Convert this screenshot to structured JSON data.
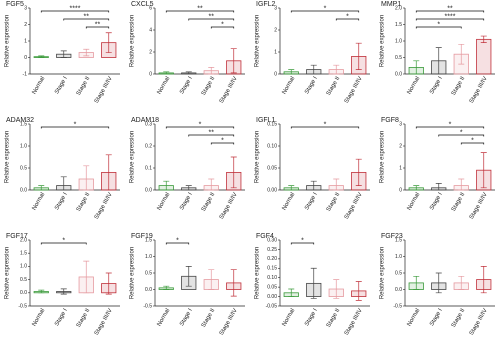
{
  "chart_data": [
    {
      "type": "bar",
      "title": "FGF5",
      "y_label": "Relative expression",
      "categories": [
        "Normal",
        "Stage I",
        "Stage II",
        "Stage III/IV"
      ],
      "colors": [
        "#3a9a3a",
        "#444444",
        "#e59aa0",
        "#c0303a"
      ],
      "values": [
        0.05,
        0.2,
        0.3,
        0.9
      ],
      "errors": [
        0.05,
        0.2,
        0.2,
        0.6
      ],
      "ylim": [
        -1,
        3
      ],
      "yticks": [
        -1,
        0,
        1,
        2,
        3
      ],
      "significance": [
        {
          "label": "**",
          "from": "Stage II",
          "to": "Stage III/IV"
        },
        {
          "label": "**",
          "from": "Stage I",
          "to": "Stage III/IV"
        },
        {
          "label": "****",
          "from": "Normal",
          "to": "Stage III/IV"
        }
      ]
    },
    {
      "type": "bar",
      "title": "CXCL5",
      "y_label": "Relative expression",
      "categories": [
        "Normal",
        "Stage I",
        "Stage II",
        "Stage III/IV"
      ],
      "colors": [
        "#3a9a3a",
        "#444444",
        "#e59aa0",
        "#c0303a"
      ],
      "values": [
        0.1,
        0.1,
        0.3,
        1.2
      ],
      "errors": [
        0.1,
        0.1,
        0.3,
        1.1
      ],
      "ylim": [
        0,
        6
      ],
      "yticks": [
        0,
        2,
        4,
        6
      ],
      "significance": [
        {
          "label": "*",
          "from": "Stage II",
          "to": "Stage III/IV"
        },
        {
          "label": "**",
          "from": "Stage I",
          "to": "Stage III/IV"
        },
        {
          "label": "**",
          "from": "Normal",
          "to": "Stage III/IV"
        }
      ]
    },
    {
      "type": "bar",
      "title": "IGFL2",
      "y_label": "Relative expression",
      "categories": [
        "Normal",
        "Stage I",
        "Stage II",
        "Stage III/IV"
      ],
      "colors": [
        "#3a9a3a",
        "#444444",
        "#e59aa0",
        "#c0303a"
      ],
      "values": [
        0.1,
        0.2,
        0.2,
        0.8
      ],
      "errors": [
        0.1,
        0.2,
        0.2,
        0.6
      ],
      "ylim": [
        0,
        3
      ],
      "yticks": [
        0,
        1,
        2,
        3
      ],
      "significance": [
        {
          "label": "*",
          "from": "Stage II",
          "to": "Stage III/IV"
        },
        {
          "label": "*",
          "from": "Normal",
          "to": "Stage III/IV"
        }
      ]
    },
    {
      "type": "bar",
      "title": "MMP1",
      "y_label": "Relative expression",
      "categories": [
        "Normal",
        "Stage I",
        "Stage II",
        "Stage III/IV"
      ],
      "colors": [
        "#3a9a3a",
        "#444444",
        "#e59aa0",
        "#c0303a"
      ],
      "values": [
        0.2,
        0.4,
        0.6,
        1.05
      ],
      "errors": [
        0.2,
        0.4,
        0.3,
        0.1
      ],
      "ylim": [
        0,
        2
      ],
      "yticks": [
        {
          "value": 0,
          "label": "0.0"
        },
        {
          "value": 0.5,
          "label": "0.5"
        },
        {
          "value": 1,
          "label": "1.0"
        },
        {
          "value": 1.5,
          "label": "1.5"
        },
        {
          "value": 2,
          "label": "2.0"
        }
      ],
      "significance": [
        {
          "label": "*",
          "from": "Normal",
          "to": "Stage II"
        },
        {
          "label": "****",
          "from": "Normal",
          "to": "Stage III/IV"
        },
        {
          "label": "**",
          "from": "Normal",
          "to": "Stage III/IV"
        }
      ]
    },
    {
      "type": "bar",
      "title": "ADAM32",
      "y_label": "Relative expression",
      "categories": [
        "Normal",
        "Stage I",
        "Stage II",
        "Stage III/IV"
      ],
      "colors": [
        "#3a9a3a",
        "#444444",
        "#e59aa0",
        "#c0303a"
      ],
      "values": [
        0.05,
        0.1,
        0.25,
        0.4
      ],
      "errors": [
        0.05,
        0.2,
        0.3,
        0.4
      ],
      "ylim": [
        0,
        1.5
      ],
      "yticks": [
        {
          "value": 0,
          "label": "0.0"
        },
        {
          "value": 0.5,
          "label": "0.5"
        },
        {
          "value": 1,
          "label": "1.0"
        },
        {
          "value": 1.5,
          "label": "1.5"
        }
      ],
      "significance": [
        {
          "label": "*",
          "from": "Normal",
          "to": "Stage III/IV"
        }
      ]
    },
    {
      "type": "bar",
      "title": "ADAM18",
      "y_label": "Relative expression",
      "categories": [
        "Normal",
        "Stage I",
        "Stage II",
        "Stage III/IV"
      ],
      "colors": [
        "#3a9a3a",
        "#444444",
        "#e59aa0",
        "#c0303a"
      ],
      "values": [
        0.02,
        0.01,
        0.02,
        0.08
      ],
      "errors": [
        0.02,
        0.01,
        0.03,
        0.07
      ],
      "ylim": [
        0,
        0.3
      ],
      "yticks": [
        {
          "value": 0,
          "label": "0.0"
        },
        0.1,
        0.2,
        0.3
      ],
      "significance": [
        {
          "label": "*",
          "from": "Stage II",
          "to": "Stage III/IV"
        },
        {
          "label": "**",
          "from": "Stage I",
          "to": "Stage III/IV"
        },
        {
          "label": "*",
          "from": "Normal",
          "to": "Stage III/IV"
        }
      ]
    },
    {
      "type": "bar",
      "title": "IGFL1",
      "y_label": "Relative expression",
      "categories": [
        "Normal",
        "Stage I",
        "Stage II",
        "Stage III/IV"
      ],
      "colors": [
        "#3a9a3a",
        "#444444",
        "#e59aa0",
        "#c0303a"
      ],
      "values": [
        0.005,
        0.01,
        0.01,
        0.04
      ],
      "errors": [
        0.005,
        0.01,
        0.015,
        0.03
      ],
      "ylim": [
        0,
        0.15
      ],
      "yticks": [
        {
          "value": 0,
          "label": "0.00"
        },
        0.05,
        {
          "value": 0.1,
          "label": "0.10"
        },
        0.15
      ],
      "significance": [
        {
          "label": "*",
          "from": "Normal",
          "to": "Stage III/IV"
        }
      ]
    },
    {
      "type": "bar",
      "title": "FGF8",
      "y_label": "Relative expression",
      "categories": [
        "Normal",
        "Stage I",
        "Stage II",
        "Stage III/IV"
      ],
      "colors": [
        "#3a9a3a",
        "#444444",
        "#e59aa0",
        "#c0303a"
      ],
      "values": [
        0.1,
        0.1,
        0.2,
        0.9
      ],
      "errors": [
        0.1,
        0.2,
        0.3,
        0.8
      ],
      "ylim": [
        0,
        3
      ],
      "yticks": [
        0,
        1,
        2,
        3
      ],
      "significance": [
        {
          "label": "*",
          "from": "Stage II",
          "to": "Stage III/IV"
        },
        {
          "label": "*",
          "from": "Stage I",
          "to": "Stage III/IV"
        },
        {
          "label": "*",
          "from": "Normal",
          "to": "Stage III/IV"
        }
      ]
    },
    {
      "type": "bar",
      "title": "FGF17",
      "y_label": "Relative expression",
      "categories": [
        "Normal",
        "Stage I",
        "Stage II",
        "Stage III/IV"
      ],
      "colors": [
        "#3a9a3a",
        "#444444",
        "#e59aa0",
        "#c0303a"
      ],
      "values": [
        0.05,
        0.05,
        0.6,
        0.35
      ],
      "errors": [
        0.05,
        0.1,
        0.6,
        0.4
      ],
      "ylim": [
        -0.5,
        2
      ],
      "yticks": [
        {
          "value": -0.5,
          "label": "-0.5"
        },
        {
          "value": 0,
          "label": "0.0"
        },
        {
          "value": 0.5,
          "label": "0.5"
        },
        {
          "value": 1,
          "label": "1.0"
        },
        {
          "value": 1.5,
          "label": "1.5"
        },
        {
          "value": 2,
          "label": "2.0"
        }
      ],
      "significance": [
        {
          "label": "*",
          "from": "Normal",
          "to": "Stage II"
        }
      ]
    },
    {
      "type": "bar",
      "title": "FGF19",
      "y_label": "Relative expression",
      "categories": [
        "Normal",
        "Stage I",
        "Stage II",
        "Stage III/IV"
      ],
      "colors": [
        "#3a9a3a",
        "#444444",
        "#e59aa0",
        "#c0303a"
      ],
      "values": [
        0.05,
        0.4,
        0.3,
        0.2
      ],
      "errors": [
        0.05,
        0.3,
        0.3,
        0.4
      ],
      "ylim": [
        -0.5,
        1.5
      ],
      "yticks": [
        {
          "value": -0.5,
          "label": "-0.5"
        },
        {
          "value": 0,
          "label": "0.0"
        },
        {
          "value": 0.5,
          "label": "0.5"
        },
        {
          "value": 1,
          "label": "1.0"
        },
        {
          "value": 1.5,
          "label": "1.5"
        }
      ],
      "significance": [
        {
          "label": "*",
          "from": "Normal",
          "to": "Stage I"
        }
      ]
    },
    {
      "type": "bar",
      "title": "FGF4",
      "y_label": "Relative expression",
      "categories": [
        "Normal",
        "Stage I",
        "Stage II",
        "Stage III/IV"
      ],
      "colors": [
        "#3a9a3a",
        "#444444",
        "#e59aa0",
        "#c0303a"
      ],
      "values": [
        0.02,
        0.07,
        0.04,
        0.03
      ],
      "errors": [
        0.02,
        0.08,
        0.05,
        0.05
      ],
      "ylim": [
        -0.05,
        0.3
      ],
      "yticks": [
        -0.05,
        {
          "value": 0,
          "label": "0.00"
        },
        0.05,
        {
          "value": 0.1,
          "label": "0.10"
        },
        0.15,
        {
          "value": 0.2,
          "label": "0.20"
        },
        0.25,
        {
          "value": 0.3,
          "label": "0.30"
        }
      ],
      "significance": [
        {
          "label": "*",
          "from": "Normal",
          "to": "Stage I"
        }
      ]
    },
    {
      "type": "bar",
      "title": "FGF23",
      "y_label": "Relative expression",
      "categories": [
        "Normal",
        "Stage I",
        "Stage II",
        "Stage III/IV"
      ],
      "colors": [
        "#3a9a3a",
        "#444444",
        "#e59aa0",
        "#c0303a"
      ],
      "values": [
        0.2,
        0.2,
        0.2,
        0.3
      ],
      "errors": [
        0.2,
        0.3,
        0.2,
        0.4
      ],
      "ylim": [
        -0.5,
        1.5
      ],
      "yticks": [
        {
          "value": -0.5,
          "label": "-0.5"
        },
        {
          "value": 0,
          "label": "0.0"
        },
        {
          "value": 0.5,
          "label": "0.5"
        },
        {
          "value": 1,
          "label": "1.0"
        },
        {
          "value": 1.5,
          "label": "1.5"
        }
      ],
      "significance": []
    }
  ]
}
